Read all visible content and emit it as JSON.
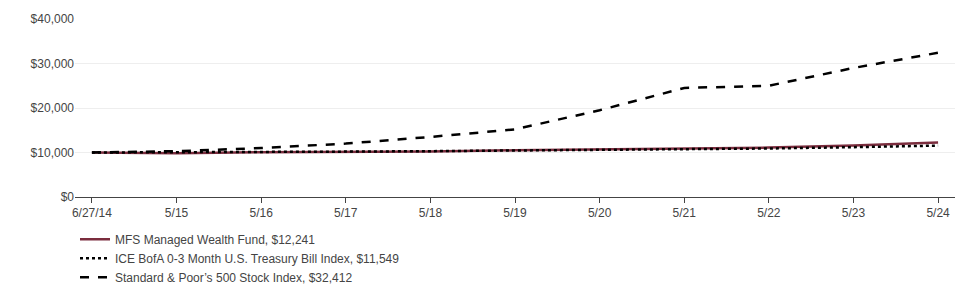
{
  "chart_data": {
    "type": "line",
    "categories": [
      "6/27/14",
      "5/15",
      "5/16",
      "5/17",
      "5/18",
      "5/19",
      "5/20",
      "5/21",
      "5/22",
      "5/23",
      "5/24"
    ],
    "series": [
      {
        "name": "MFS Managed Wealth Fund, $12,241",
        "color": "#7B2D3E",
        "line_style": "solid",
        "values": [
          10000,
          9850,
          10050,
          10100,
          10200,
          10500,
          10700,
          10900,
          11100,
          11600,
          12241
        ]
      },
      {
        "name": "ICE BofA 0-3 Month U.S. Treasury Bill Index, $11,549",
        "color": "#000000",
        "line_style": "dotted",
        "values": [
          10000,
          10020,
          10100,
          10200,
          10300,
          10450,
          10580,
          10700,
          10900,
          11200,
          11549
        ]
      },
      {
        "name": "Standard & Poor’s 500 Stock Index, $32,412",
        "color": "#000000",
        "line_style": "dashed",
        "values": [
          10000,
          10300,
          11000,
          12000,
          13500,
          15200,
          19500,
          24500,
          25000,
          29000,
          32412
        ]
      }
    ],
    "ylim": [
      0,
      40000
    ],
    "yticks": [
      {
        "value": 0,
        "label": "$0"
      },
      {
        "value": 10000,
        "label": "$10,000"
      },
      {
        "value": 20000,
        "label": "$20,000"
      },
      {
        "value": 30000,
        "label": "$30,000"
      },
      {
        "value": 40000,
        "label": "$40,000"
      }
    ],
    "grid": true,
    "legend": "bottom"
  }
}
